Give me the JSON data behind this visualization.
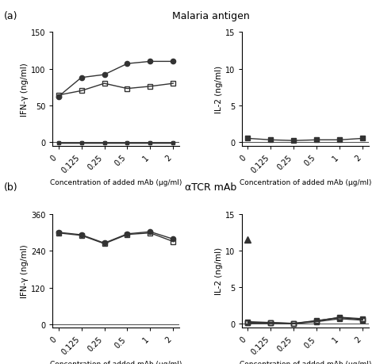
{
  "x_vals": [
    0,
    1,
    2,
    3,
    4,
    5
  ],
  "x_ticklabels": [
    "0",
    "0.125",
    "0.25",
    "0.5",
    "1",
    "2"
  ],
  "xlabel": "Concentration of added mAb (μg/ml)",
  "title_a": "Malaria antigen",
  "title_b": "αTCR mAb",
  "panel_a_label": "(a)",
  "panel_b_label": "(b)",
  "a_ifng_ylabel": "IFN-γ (ng/ml)",
  "a_il2_ylabel": "IL-2 (ng/ml)",
  "b_ifng_ylabel": "IFN-γ (ng/ml)",
  "b_il2_ylabel": "IL-2 (ng/ml)",
  "a_ifng_ylim": [
    -5,
    150
  ],
  "a_ifng_yticks": [
    0,
    50,
    100,
    150
  ],
  "a_il2_ylim": [
    -0.5,
    15
  ],
  "a_il2_yticks": [
    0,
    5,
    10,
    15
  ],
  "b_ifng_ylim": [
    -10,
    360
  ],
  "b_ifng_yticks": [
    0,
    120,
    240,
    360
  ],
  "b_il2_ylim": [
    -0.5,
    15
  ],
  "b_il2_yticks": [
    0,
    5,
    10,
    15
  ],
  "a_ifng_series1": [
    62,
    88,
    92,
    107,
    110,
    110
  ],
  "a_ifng_series2": [
    64,
    70,
    80,
    73,
    76,
    80
  ],
  "a_ifng_series3": [
    -1,
    -1,
    -1,
    -1,
    -1,
    -1
  ],
  "a_ifng_series4": [
    -1,
    -1,
    -1,
    -1,
    -1,
    -1
  ],
  "a_il2_series1": [
    0.5,
    0.3,
    0.2,
    0.3,
    0.3,
    0.5
  ],
  "b_ifng_series1": [
    300,
    292,
    265,
    295,
    302,
    278
  ],
  "b_ifng_series2": [
    298,
    290,
    263,
    293,
    298,
    270
  ],
  "b_il2_triangle_x": [
    0
  ],
  "b_il2_triangle_y": [
    11.5
  ],
  "b_il2_series_sq1": [
    0.2,
    0.15,
    0.05,
    0.4,
    0.9,
    0.7
  ],
  "b_il2_series_sq2": [
    0.1,
    0.12,
    0.03,
    0.3,
    0.7,
    0.5
  ],
  "b_il2_series_sq3": [
    0.3,
    0.18,
    0.07,
    0.45,
    0.85,
    0.6
  ],
  "color_dark": "#333333",
  "bg_color": "#ffffff",
  "linewidth": 1.0,
  "markersize": 4.5
}
